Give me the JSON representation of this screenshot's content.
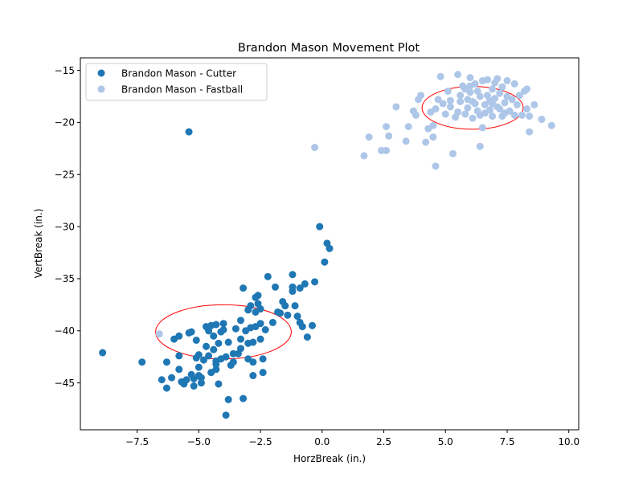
{
  "chart_data": {
    "type": "scatter",
    "title": "Brandon Mason Movement Plot",
    "xlabel": "HorzBreak (in.)",
    "ylabel": "VertBreak (in.)",
    "xlim": [
      -9.8,
      10.4
    ],
    "ylim": [
      -49.5,
      -13.8
    ],
    "xticks": [
      -7.5,
      -5.0,
      -2.5,
      0.0,
      2.5,
      5.0,
      7.5,
      10.0
    ],
    "xtick_labels": [
      "−7.5",
      "−5.0",
      "−2.5",
      "0.0",
      "2.5",
      "5.0",
      "7.5",
      "10.0"
    ],
    "yticks": [
      -45,
      -40,
      -35,
      -30,
      -25,
      -20,
      -15
    ],
    "ytick_labels": [
      "−45",
      "−40",
      "−35",
      "−30",
      "−25",
      "−20",
      "−15"
    ],
    "grid": false,
    "legend_position": "upper-left",
    "series": [
      {
        "name": "Brandon Mason - Cutter",
        "color": "#1f77b4",
        "points": [
          [
            -5.4,
            -20.9
          ],
          [
            -8.9,
            -42.1
          ],
          [
            -7.3,
            -43.0
          ],
          [
            -6.3,
            -45.5
          ],
          [
            -6.5,
            -44.7
          ],
          [
            -6.3,
            -43.0
          ],
          [
            -6.1,
            -44.5
          ],
          [
            -6.0,
            -40.8
          ],
          [
            -5.8,
            -42.4
          ],
          [
            -5.8,
            -40.5
          ],
          [
            -5.8,
            -43.7
          ],
          [
            -5.7,
            -44.9
          ],
          [
            -5.6,
            -45.1
          ],
          [
            -5.5,
            -44.7
          ],
          [
            -5.4,
            -40.2
          ],
          [
            -5.3,
            -44.2
          ],
          [
            -5.3,
            -40.1
          ],
          [
            -5.2,
            -45.3
          ],
          [
            -5.2,
            -44.6
          ],
          [
            -5.1,
            -42.6
          ],
          [
            -5.1,
            -40.9
          ],
          [
            -5.0,
            -44.3
          ],
          [
            -5.0,
            -43.5
          ],
          [
            -5.0,
            -42.3
          ],
          [
            -4.9,
            -45.0
          ],
          [
            -4.9,
            -44.5
          ],
          [
            -4.8,
            -42.8
          ],
          [
            -4.7,
            -39.6
          ],
          [
            -4.7,
            -41.5
          ],
          [
            -4.6,
            -40.0
          ],
          [
            -4.6,
            -42.4
          ],
          [
            -4.5,
            -39.5
          ],
          [
            -4.5,
            -44.0
          ],
          [
            -4.4,
            -40.5
          ],
          [
            -4.4,
            -41.8
          ],
          [
            -4.3,
            -42.9
          ],
          [
            -4.3,
            -39.4
          ],
          [
            -4.3,
            -43.7
          ],
          [
            -4.3,
            -43.2
          ],
          [
            -4.2,
            -45.1
          ],
          [
            -4.2,
            -41.2
          ],
          [
            -4.1,
            -42.7
          ],
          [
            -4.1,
            -40.1
          ],
          [
            -4.0,
            -39.3
          ],
          [
            -4.0,
            -39.9
          ],
          [
            -3.9,
            -42.5
          ],
          [
            -3.9,
            -48.1
          ],
          [
            -3.8,
            -41.1
          ],
          [
            -3.8,
            -46.6
          ],
          [
            -3.7,
            -43.3
          ],
          [
            -3.6,
            -43.0
          ],
          [
            -3.6,
            -42.2
          ],
          [
            -3.5,
            -39.8
          ],
          [
            -3.4,
            -42.2
          ],
          [
            -3.3,
            -41.7
          ],
          [
            -3.3,
            -40.8
          ],
          [
            -3.3,
            -39.0
          ],
          [
            -3.2,
            -46.5
          ],
          [
            -3.2,
            -35.9
          ],
          [
            -3.1,
            -40.0
          ],
          [
            -3.0,
            -42.7
          ],
          [
            -3.0,
            -41.2
          ],
          [
            -3.0,
            -38.0
          ],
          [
            -2.9,
            -39.7
          ],
          [
            -2.9,
            -37.6
          ],
          [
            -2.8,
            -41.1
          ],
          [
            -2.8,
            -44.3
          ],
          [
            -2.8,
            -43.0
          ],
          [
            -2.7,
            -38.2
          ],
          [
            -2.7,
            -39.6
          ],
          [
            -2.7,
            -36.8
          ],
          [
            -2.6,
            -37.4
          ],
          [
            -2.6,
            -36.6
          ],
          [
            -2.5,
            -37.9
          ],
          [
            -2.5,
            -40.8
          ],
          [
            -2.5,
            -39.3
          ],
          [
            -2.4,
            -44.0
          ],
          [
            -2.4,
            -42.7
          ],
          [
            -2.3,
            -39.9
          ],
          [
            -2.2,
            -34.8
          ],
          [
            -2.0,
            -39.2
          ],
          [
            -1.9,
            -35.8
          ],
          [
            -1.8,
            -38.2
          ],
          [
            -1.7,
            -38.3
          ],
          [
            -1.6,
            -37.2
          ],
          [
            -1.5,
            -37.6
          ],
          [
            -1.4,
            -38.5
          ],
          [
            -1.2,
            -35.8
          ],
          [
            -1.2,
            -34.6
          ],
          [
            -1.2,
            -36.2
          ],
          [
            -1.1,
            -37.6
          ],
          [
            -1.0,
            -38.6
          ],
          [
            -0.9,
            -35.9
          ],
          [
            -0.9,
            -39.2
          ],
          [
            -0.8,
            -39.6
          ],
          [
            -0.7,
            -35.5
          ],
          [
            -0.6,
            -40.6
          ],
          [
            -0.4,
            -39.5
          ],
          [
            -0.3,
            -35.3
          ],
          [
            -0.1,
            -30.0
          ],
          [
            0.1,
            -33.4
          ],
          [
            0.2,
            -31.6
          ],
          [
            0.3,
            -32.1
          ]
        ]
      },
      {
        "name": "Brandon Mason - Fastball",
        "color": "#aec7e8",
        "points": [
          [
            -6.6,
            -40.3
          ],
          [
            -0.3,
            -22.4
          ],
          [
            1.7,
            -23.2
          ],
          [
            1.9,
            -21.4
          ],
          [
            2.4,
            -22.7
          ],
          [
            2.6,
            -22.7
          ],
          [
            2.6,
            -20.4
          ],
          [
            2.7,
            -21.3
          ],
          [
            3.0,
            -18.5
          ],
          [
            3.4,
            -21.8
          ],
          [
            3.5,
            -20.4
          ],
          [
            3.7,
            -18.9
          ],
          [
            3.8,
            -19.3
          ],
          [
            3.9,
            -17.8
          ],
          [
            4.0,
            -17.4
          ],
          [
            4.2,
            -21.9
          ],
          [
            4.3,
            -20.6
          ],
          [
            4.4,
            -19.0
          ],
          [
            4.5,
            -21.4
          ],
          [
            4.5,
            -20.3
          ],
          [
            4.6,
            -24.2
          ],
          [
            4.6,
            -18.7
          ],
          [
            4.7,
            -17.8
          ],
          [
            4.8,
            -15.6
          ],
          [
            4.9,
            -18.2
          ],
          [
            5.0,
            -19.2
          ],
          [
            5.1,
            -17.0
          ],
          [
            5.2,
            -18.5
          ],
          [
            5.3,
            -23.0
          ],
          [
            5.4,
            -19.5
          ],
          [
            5.5,
            -15.4
          ],
          [
            5.6,
            -18.0
          ],
          [
            5.7,
            -16.5
          ],
          [
            5.8,
            -19.2
          ],
          [
            5.9,
            -17.8
          ],
          [
            5.9,
            -18.6
          ],
          [
            6.0,
            -15.7
          ],
          [
            6.0,
            -17.1
          ],
          [
            6.1,
            -19.6
          ],
          [
            6.2,
            -18.2
          ],
          [
            6.2,
            -16.3
          ],
          [
            6.3,
            -18.9
          ],
          [
            6.4,
            -17.5
          ],
          [
            6.4,
            -22.3
          ],
          [
            6.5,
            -20.5
          ],
          [
            6.5,
            -16.0
          ],
          [
            6.6,
            -18.3
          ],
          [
            6.6,
            -19.1
          ],
          [
            6.7,
            -17.4
          ],
          [
            6.7,
            -15.9
          ],
          [
            6.8,
            -18.8
          ],
          [
            6.9,
            -16.8
          ],
          [
            6.9,
            -19.4
          ],
          [
            7.0,
            -17.7
          ],
          [
            7.0,
            -16.2
          ],
          [
            7.1,
            -18.5
          ],
          [
            7.1,
            -15.8
          ],
          [
            7.2,
            -17.2
          ],
          [
            7.3,
            -19.4
          ],
          [
            7.3,
            -16.6
          ],
          [
            7.4,
            -18.1
          ],
          [
            7.5,
            -17.5
          ],
          [
            7.5,
            -16.0
          ],
          [
            7.6,
            -18.9
          ],
          [
            7.7,
            -17.8
          ],
          [
            7.8,
            -16.3
          ],
          [
            7.8,
            -19.3
          ],
          [
            7.9,
            -18.3
          ],
          [
            8.0,
            -17.4
          ],
          [
            8.1,
            -19.3
          ],
          [
            8.2,
            -17.0
          ],
          [
            8.3,
            -18.7
          ],
          [
            8.3,
            -16.8
          ],
          [
            8.4,
            -19.4
          ],
          [
            8.4,
            -20.9
          ],
          [
            8.6,
            -18.3
          ],
          [
            8.9,
            -19.7
          ],
          [
            9.3,
            -20.3
          ],
          [
            5.2,
            -17.9
          ],
          [
            5.6,
            -17.4
          ],
          [
            6.3,
            -17.0
          ],
          [
            6.8,
            -17.9
          ],
          [
            6.1,
            -18.0
          ],
          [
            5.8,
            -16.8
          ],
          [
            7.2,
            -18.7
          ],
          [
            6.4,
            -19.3
          ],
          [
            5.5,
            -19.0
          ],
          [
            6.9,
            -18.2
          ],
          [
            7.4,
            -19.1
          ],
          [
            6.0,
            -16.5
          ]
        ]
      }
    ],
    "ellipses": [
      {
        "color": "#ff0000",
        "cx": -4.0,
        "cy": -40.1,
        "rx": 2.75,
        "ry": 2.6
      },
      {
        "color": "#ff0000",
        "cx": 6.1,
        "cy": -18.6,
        "rx": 2.05,
        "ry": 2.05
      }
    ]
  }
}
